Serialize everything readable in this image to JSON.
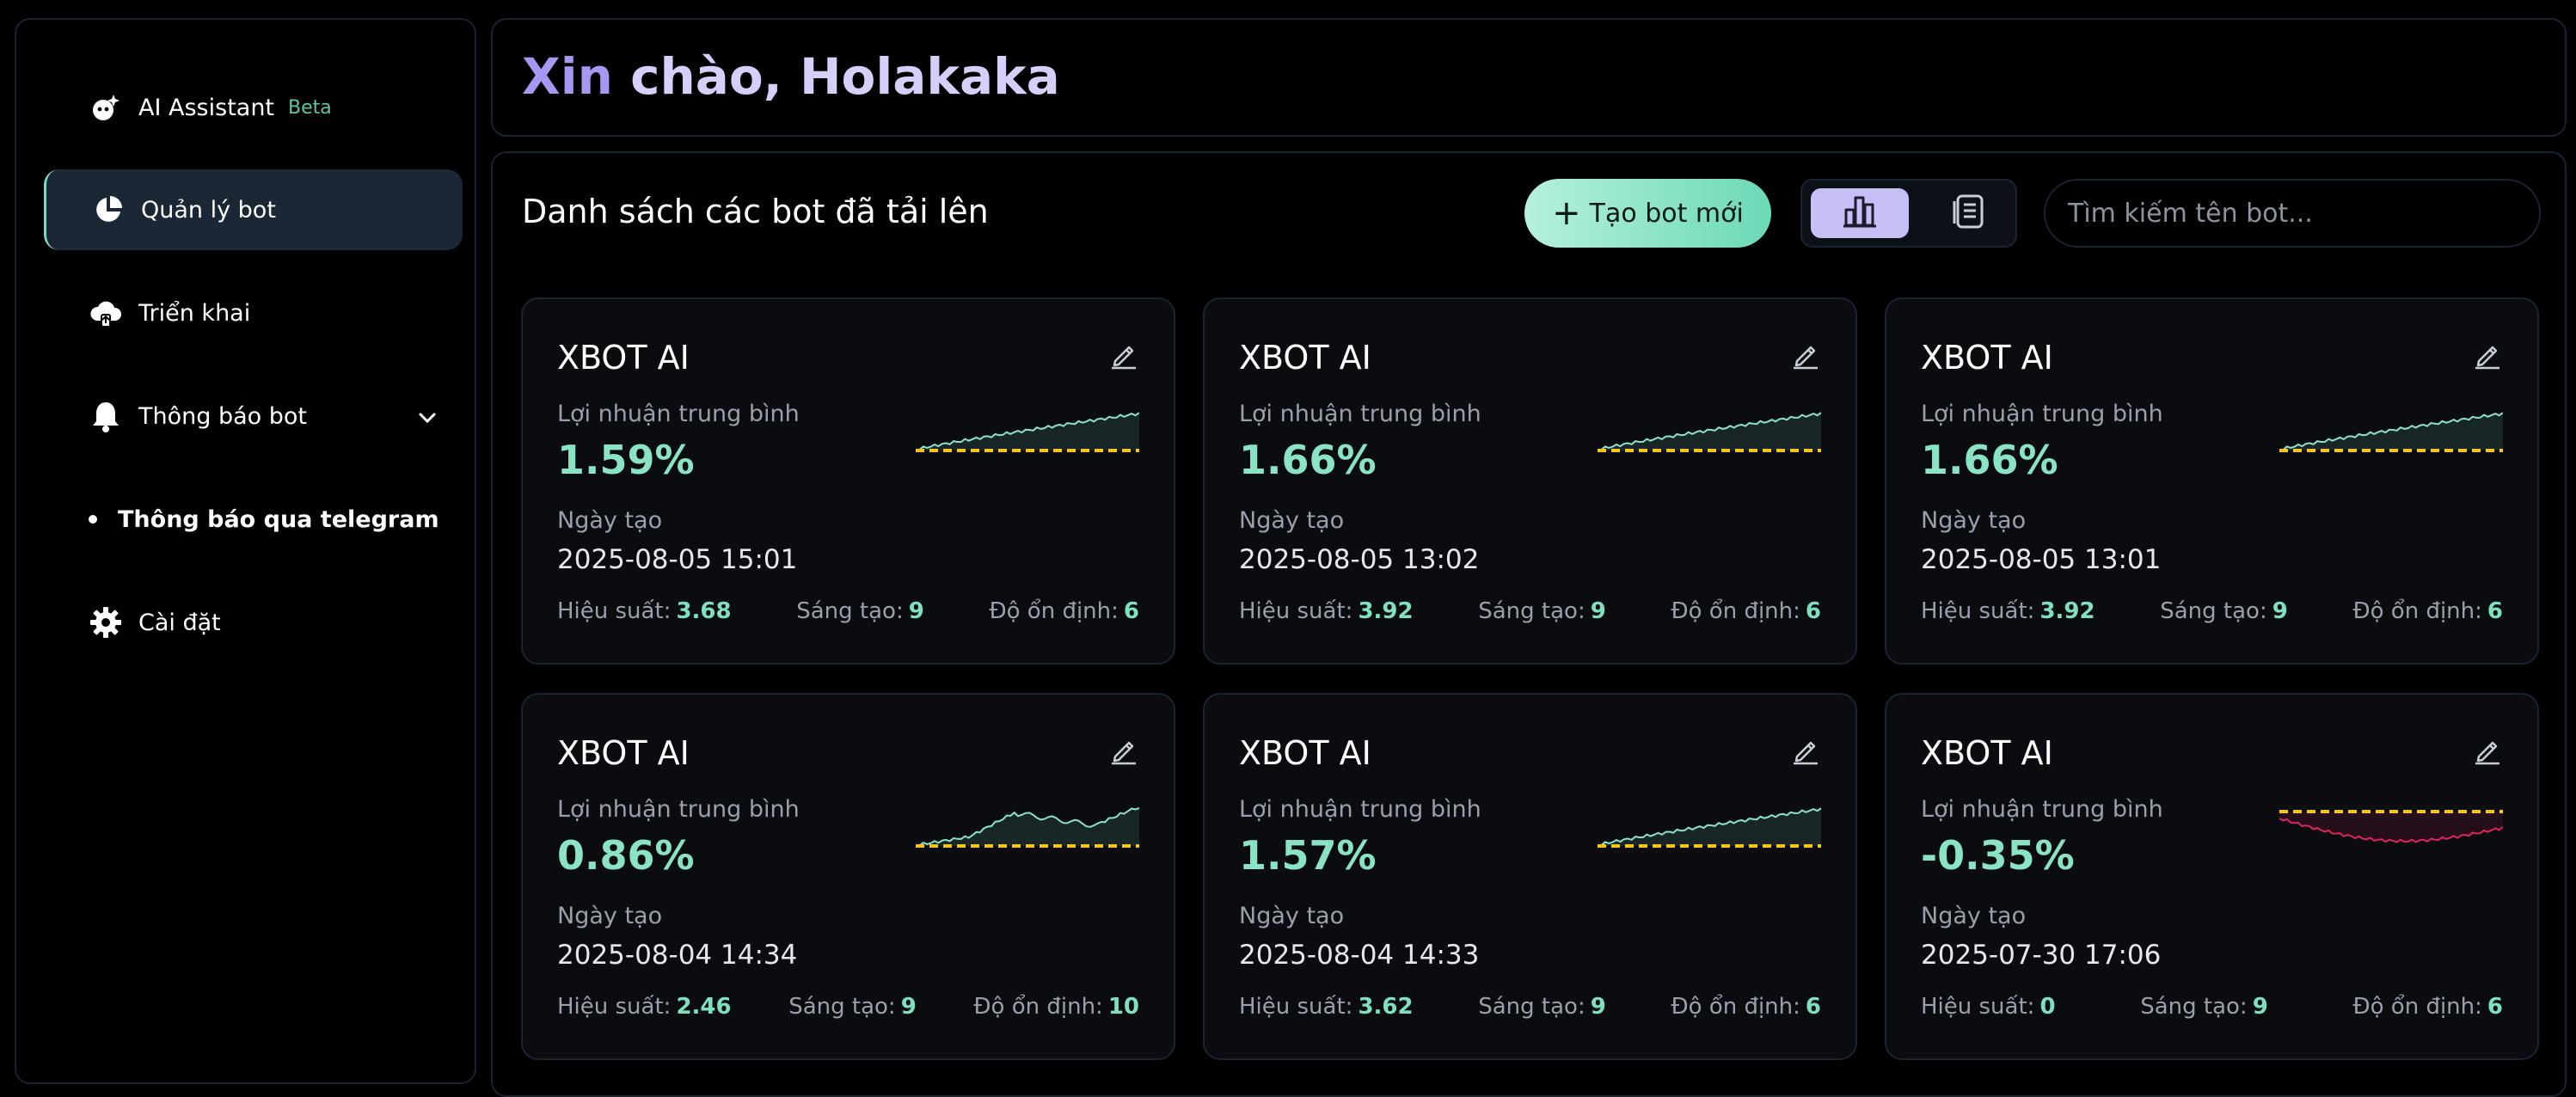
{
  "sidebar": {
    "items": [
      {
        "label": "AI Assistant",
        "badge": "Beta",
        "icon": "ai-assistant-icon"
      },
      {
        "label": "Quản lý bot",
        "icon": "pie-chart-icon",
        "active": true
      },
      {
        "label": "Triển khai",
        "icon": "cloud-upload-icon"
      },
      {
        "label": "Thông báo bot",
        "icon": "bell-icon"
      },
      {
        "label": "Thông báo qua telegram",
        "icon": "bullet-icon"
      },
      {
        "label": "Cài đặt",
        "icon": "gear-icon"
      }
    ]
  },
  "header": {
    "greet_1": "Xin",
    "greet_2": " chào, Holakaka"
  },
  "main": {
    "title": "Danh sách các bot đã tải lên",
    "new_button": "Tạo bot mới",
    "search_placeholder": "Tìm kiếm tên bot..."
  },
  "colors": {
    "accent": "#8be3c6",
    "negative": "#e0245e",
    "baseline": "#f5c518",
    "brand": "#a698f0"
  },
  "cards": [
    {
      "name": "XBOT AI",
      "profit_label": "Lợi nhuận trung bình",
      "profit": "1.59%",
      "date_label": "Ngày tạo",
      "date": "2025-08-05 15:01",
      "perf_label": "Hiệu suất:",
      "perf": "3.68",
      "creative_label": "Sáng tạo:",
      "creative": "9",
      "stability_label": "Độ ổn định:",
      "stability": "6"
    },
    {
      "name": "XBOT AI",
      "profit_label": "Lợi nhuận trung bình",
      "profit": "1.66%",
      "date_label": "Ngày tạo",
      "date": "2025-08-05 13:02",
      "perf_label": "Hiệu suất:",
      "perf": "3.92",
      "creative_label": "Sáng tạo:",
      "creative": "9",
      "stability_label": "Độ ổn định:",
      "stability": "6"
    },
    {
      "name": "XBOT AI",
      "profit_label": "Lợi nhuận trung bình",
      "profit": "1.66%",
      "date_label": "Ngày tạo",
      "date": "2025-08-05 13:01",
      "perf_label": "Hiệu suất:",
      "perf": "3.92",
      "creative_label": "Sáng tạo:",
      "creative": "9",
      "stability_label": "Độ ổn định:",
      "stability": "6"
    },
    {
      "name": "XBOT AI",
      "profit_label": "Lợi nhuận trung bình",
      "profit": "0.86%",
      "date_label": "Ngày tạo",
      "date": "2025-08-04 14:34",
      "perf_label": "Hiệu suất:",
      "perf": "2.46",
      "creative_label": "Sáng tạo:",
      "creative": "9",
      "stability_label": "Độ ổn định:",
      "stability": "10"
    },
    {
      "name": "XBOT AI",
      "profit_label": "Lợi nhuận trung bình",
      "profit": "1.57%",
      "date_label": "Ngày tạo",
      "date": "2025-08-04 14:33",
      "perf_label": "Hiệu suất:",
      "perf": "3.62",
      "creative_label": "Sáng tạo:",
      "creative": "9",
      "stability_label": "Độ ổn định:",
      "stability": "6"
    },
    {
      "name": "XBOT AI",
      "profit_label": "Lợi nhuận trung bình",
      "profit": "-0.35%",
      "date_label": "Ngày tạo",
      "date": "2025-07-30 17:06",
      "perf_label": "Hiệu suất:",
      "perf": "0",
      "creative_label": "Sáng tạo:",
      "creative": "9",
      "stability_label": "Độ ổn định:",
      "stability": "6"
    }
  ]
}
